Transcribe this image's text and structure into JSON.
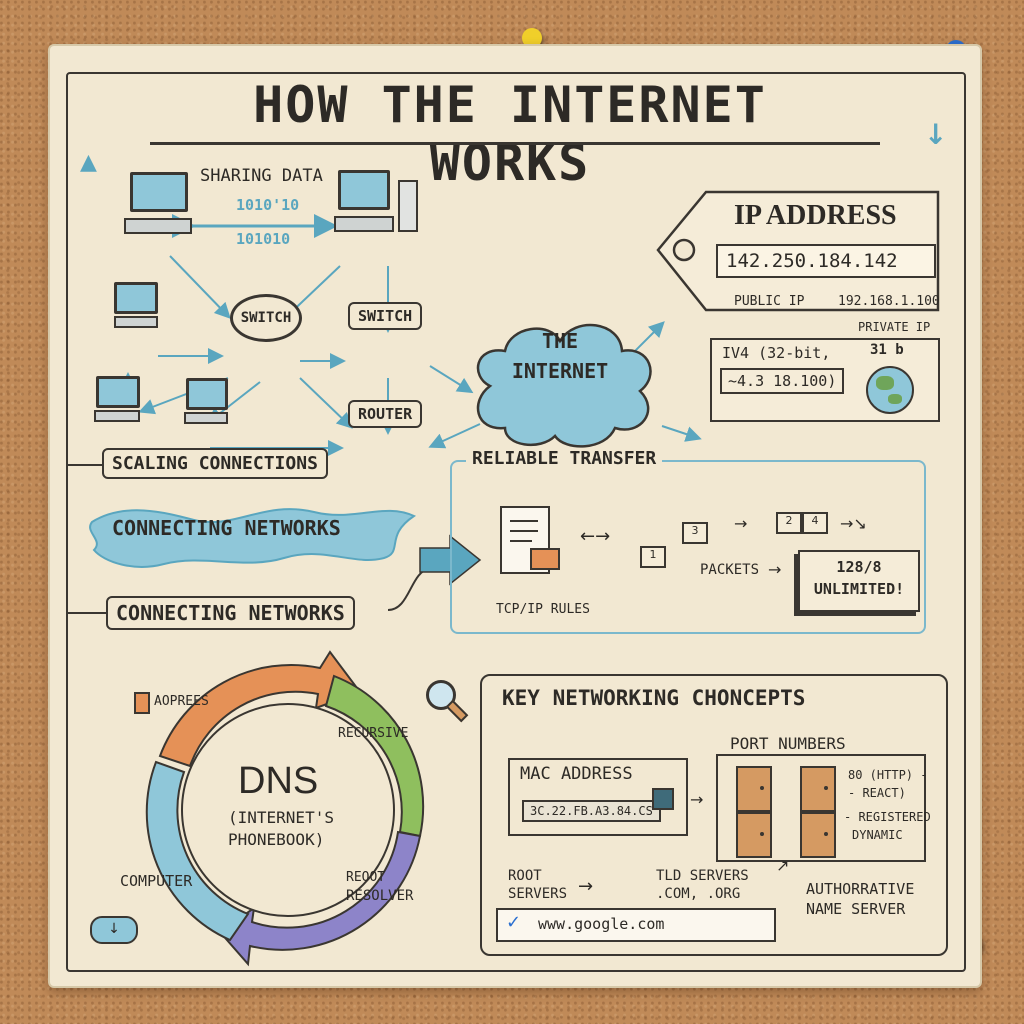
{
  "title": "HOW THE INTERNET WORKS",
  "network": {
    "sharing_data": "SHARING DATA",
    "binary_top": "1010'10",
    "binary_bottom": "101010",
    "switch_left": "SWITCH",
    "switch_right": "SWITCH",
    "router": "ROUTER",
    "cloud": "THE INTERNET"
  },
  "ip": {
    "title": "IP ADDRESS",
    "value": "142.250.184.142",
    "public": "PUBLIC IP",
    "private_value": "192.168.1.100",
    "private": "PRIVATE IP",
    "ipv4": "IV4 (32-bit,",
    "ipv4_value": "~4.3 18.100)",
    "globe_note": "31 b"
  },
  "scaling": "SCALING CONNECTIONS",
  "connecting_wave": "CONNECTING NETWORKS",
  "connecting_label": "CONNECTING NETWORKS",
  "reliable": {
    "title": "RELIABLE TRANSFER",
    "tcp": "TCP/IP RULES",
    "packets": "PACKETS",
    "unlimited_top": "128/8",
    "unlimited_bottom": "UNLIMITED!",
    "box_nums": [
      "1",
      "3",
      "2",
      "4"
    ]
  },
  "dns": {
    "title": "DNS",
    "subtitle1": "(INTERNET'S",
    "subtitle2": "PHONEBOOK)",
    "adpress": "AOPREES",
    "recursive": "RECURSIVE",
    "computer": "COMPUTER",
    "resolver1": "REOOT",
    "resolver2": "RESOLVER"
  },
  "concepts": {
    "title": "KEY NETWORKING CHONCEPTS",
    "mac_title": "MAC ADDRESS",
    "mac_value": "3C.22.FB.A3.84.CS",
    "port_title": "PORT NUMBERS",
    "port_80": "80 (HTTP) -",
    "port_react": "- REACT)",
    "port_registered": "- REGISTERED",
    "port_dynamic": "DYNAMIC",
    "root1": "ROOT",
    "root2": "SERVERS",
    "tld1": "TLD SERVERS",
    "tld2": ".COM, .ORG",
    "auth1": "AUTHORRATIVE",
    "auth2": "NAME SERVER",
    "url": "www.google.com"
  },
  "colors": {
    "pin_red": "#d8342c",
    "pin_yellow": "#f0cf2a",
    "pin_blue": "#2a6fd0",
    "pin_green": "#2ea040",
    "cloud": "#8fc7d9",
    "dns_orange": "#e59157",
    "dns_green": "#8fbf5e",
    "dns_purple": "#8d84c9",
    "dns_blue": "#8fc7d9"
  }
}
